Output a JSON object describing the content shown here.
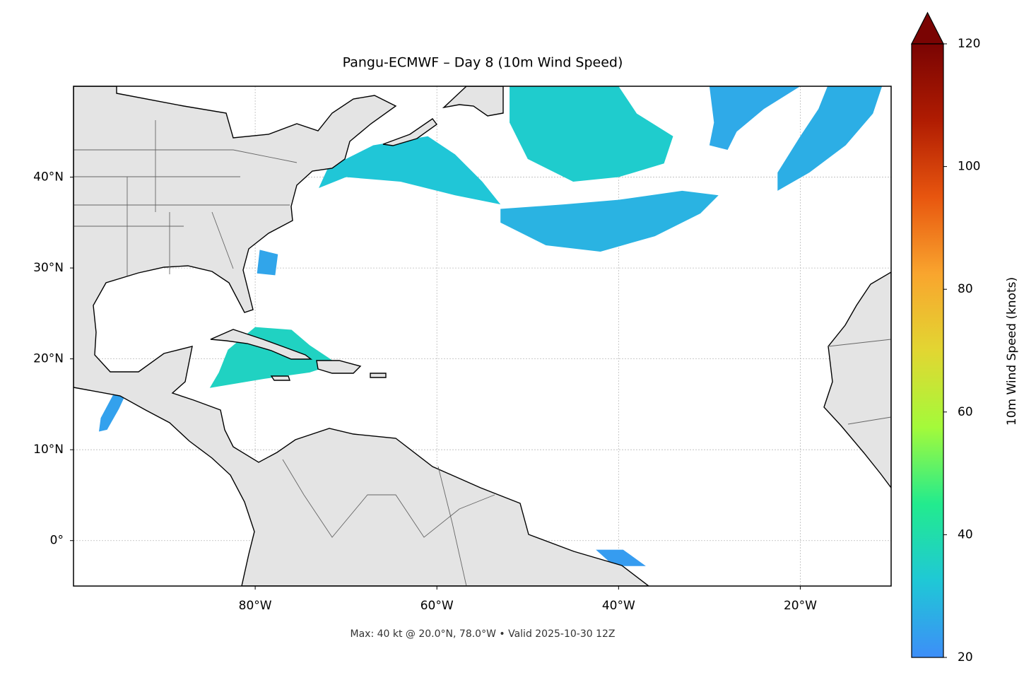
{
  "chart_data": {
    "type": "map",
    "title": "Pangu-ECMWF – Day 8 (10m Wind Speed)",
    "footnote": "Max: 40 kt @ 20.0°N, 78.0°W • Valid 2025-10-30 12Z",
    "colorbar_label": "10m Wind Speed (knots)",
    "xlim": [
      -100,
      -10
    ],
    "ylim": [
      -5,
      50
    ],
    "xticks": [
      {
        "value": -80,
        "label": "80°W"
      },
      {
        "value": -60,
        "label": "60°W"
      },
      {
        "value": -40,
        "label": "40°W"
      },
      {
        "value": -20,
        "label": "20°W"
      }
    ],
    "yticks": [
      {
        "value": 0,
        "label": "0°"
      },
      {
        "value": 10,
        "label": "10°N"
      },
      {
        "value": 20,
        "label": "20°N"
      },
      {
        "value": 30,
        "label": "30°N"
      },
      {
        "value": 40,
        "label": "40°N"
      }
    ],
    "grid": true,
    "clim": [
      20,
      120
    ],
    "cticks": [
      20,
      40,
      60,
      80,
      100,
      120
    ],
    "extend": "max",
    "colormap": [
      "#3d8ef8",
      "#1fc8d6",
      "#22eb8e",
      "#a4fa3a",
      "#e2d632",
      "#f9a52e",
      "#e8560f",
      "#b01c02",
      "#7a0403"
    ],
    "wind_regions": [
      {
        "value": 32,
        "points": [
          [
            -72,
            41
          ],
          [
            -67,
            43.5
          ],
          [
            -61,
            44.5
          ],
          [
            -58,
            42.5
          ],
          [
            -55,
            39.5
          ],
          [
            -53,
            37
          ],
          [
            -58,
            38
          ],
          [
            -64,
            39.5
          ],
          [
            -70,
            40
          ],
          [
            -73,
            38.8
          ]
        ]
      },
      {
        "value": 34,
        "points": [
          [
            -52,
            50
          ],
          [
            -40,
            50
          ],
          [
            -38,
            47
          ],
          [
            -34,
            44.5
          ],
          [
            -35,
            41.5
          ],
          [
            -40,
            40
          ],
          [
            -45,
            39.5
          ],
          [
            -50,
            42
          ],
          [
            -52,
            46
          ]
        ]
      },
      {
        "value": 28,
        "points": [
          [
            -53,
            36.5
          ],
          [
            -46,
            37
          ],
          [
            -40,
            37.5
          ],
          [
            -33,
            38.5
          ],
          [
            -29,
            38
          ],
          [
            -31,
            36
          ],
          [
            -36,
            33.5
          ],
          [
            -42,
            31.8
          ],
          [
            -48,
            32.5
          ],
          [
            -53,
            35
          ]
        ]
      },
      {
        "value": 26,
        "points": [
          [
            -30,
            50
          ],
          [
            -20,
            50
          ],
          [
            -24,
            47.5
          ],
          [
            -27,
            45
          ],
          [
            -28,
            43
          ],
          [
            -30,
            43.5
          ],
          [
            -29.5,
            46
          ]
        ]
      },
      {
        "value": 27,
        "points": [
          [
            -17,
            50
          ],
          [
            -11,
            50
          ],
          [
            -12,
            47
          ],
          [
            -15,
            43.5
          ],
          [
            -19,
            40.5
          ],
          [
            -22.5,
            38.5
          ],
          [
            -22.5,
            40.5
          ],
          [
            -20,
            44.5
          ],
          [
            -18,
            47.5
          ]
        ]
      },
      {
        "value": 36,
        "points": [
          [
            -83,
            21
          ],
          [
            -80,
            23.5
          ],
          [
            -76,
            23.2
          ],
          [
            -74,
            21.5
          ],
          [
            -71,
            19.5
          ],
          [
            -74,
            18.5
          ],
          [
            -79,
            17.8
          ],
          [
            -85,
            16.8
          ],
          [
            -84,
            18.5
          ]
        ]
      },
      {
        "value": 25,
        "points": [
          [
            -79.5,
            32
          ],
          [
            -77.5,
            31.5
          ],
          [
            -77.8,
            29.2
          ],
          [
            -79.8,
            29.4
          ]
        ]
      },
      {
        "value": 24,
        "points": [
          [
            -96.3,
            12.2
          ],
          [
            -95,
            14.5
          ],
          [
            -94.3,
            16
          ],
          [
            -95.5,
            16.3
          ],
          [
            -97,
            13.5
          ],
          [
            -97.2,
            12
          ]
        ]
      },
      {
        "value": 23,
        "points": [
          [
            -42.5,
            -1
          ],
          [
            -39.5,
            -1
          ],
          [
            -37,
            -2.8
          ],
          [
            -40.5,
            -2.8
          ]
        ]
      }
    ]
  }
}
